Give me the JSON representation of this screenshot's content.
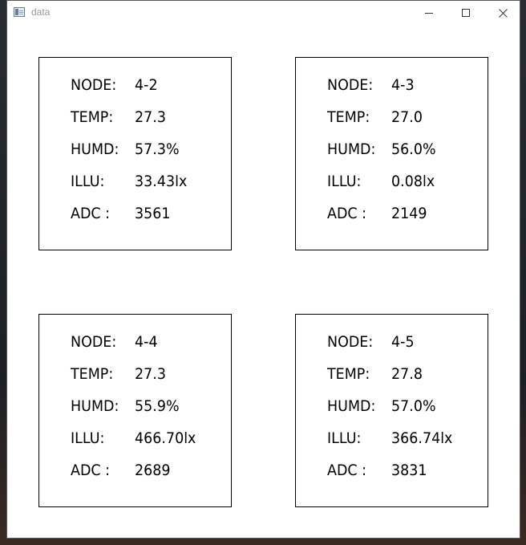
{
  "window": {
    "title": "data",
    "controls": [
      "minimize-icon",
      "maximize-icon",
      "close-icon"
    ]
  },
  "labels": {
    "node": "NODE:",
    "temp": "TEMP:",
    "humd": "HUMD:",
    "illu": "ILLU:",
    "adc": "ADC :"
  },
  "nodes": [
    {
      "node": "4-2",
      "temp": "27.3",
      "humd": "57.3%",
      "illu": "33.43lx",
      "adc": "3561"
    },
    {
      "node": "4-3",
      "temp": "27.0",
      "humd": "56.0%",
      "illu": "0.08lx",
      "adc": "2149"
    },
    {
      "node": "4-4",
      "temp": "27.3",
      "humd": "55.9%",
      "illu": "466.70lx",
      "adc": "2689"
    },
    {
      "node": "4-5",
      "temp": "27.8",
      "humd": "57.0%",
      "illu": "366.74lx",
      "adc": "3831"
    }
  ]
}
